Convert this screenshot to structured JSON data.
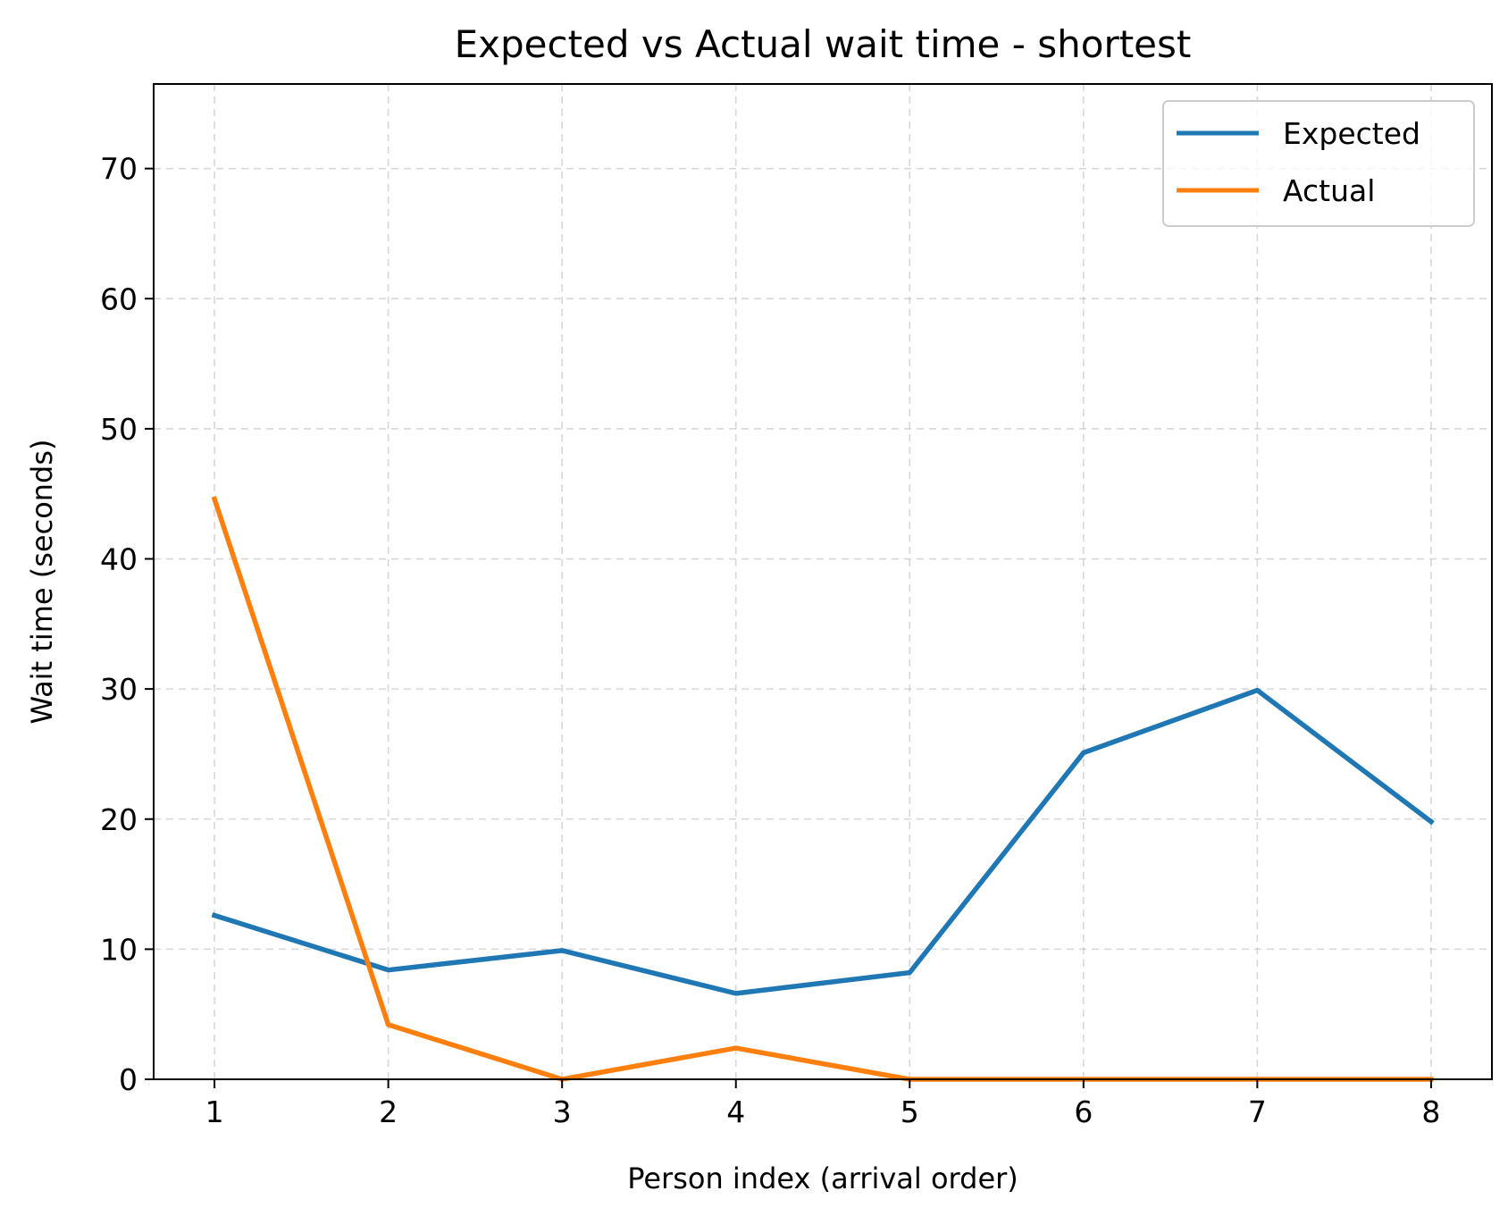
{
  "chart_data": {
    "type": "line",
    "title": "Expected vs Actual wait time - shortest",
    "xlabel": "Person index (arrival order)",
    "ylabel": "Wait time (seconds)",
    "x": [
      1,
      2,
      3,
      4,
      5,
      6,
      7,
      8
    ],
    "xlim": [
      0.65,
      8.35
    ],
    "ylim": [
      0,
      76.5
    ],
    "xticks": [
      1,
      2,
      3,
      4,
      5,
      6,
      7,
      8
    ],
    "yticks": [
      0,
      10,
      20,
      30,
      40,
      50,
      60,
      70
    ],
    "grid": true,
    "legend_position": "top-right",
    "series": [
      {
        "name": "Expected",
        "color": "#1f77b4",
        "values": [
          12.6,
          8.4,
          9.9,
          6.6,
          8.2,
          25.1,
          29.9,
          19.8
        ]
      },
      {
        "name": "Actual",
        "color": "#ff7f0e",
        "values": [
          44.6,
          4.2,
          0.0,
          2.4,
          0.0,
          0.0,
          0.0,
          0.0
        ]
      }
    ]
  }
}
